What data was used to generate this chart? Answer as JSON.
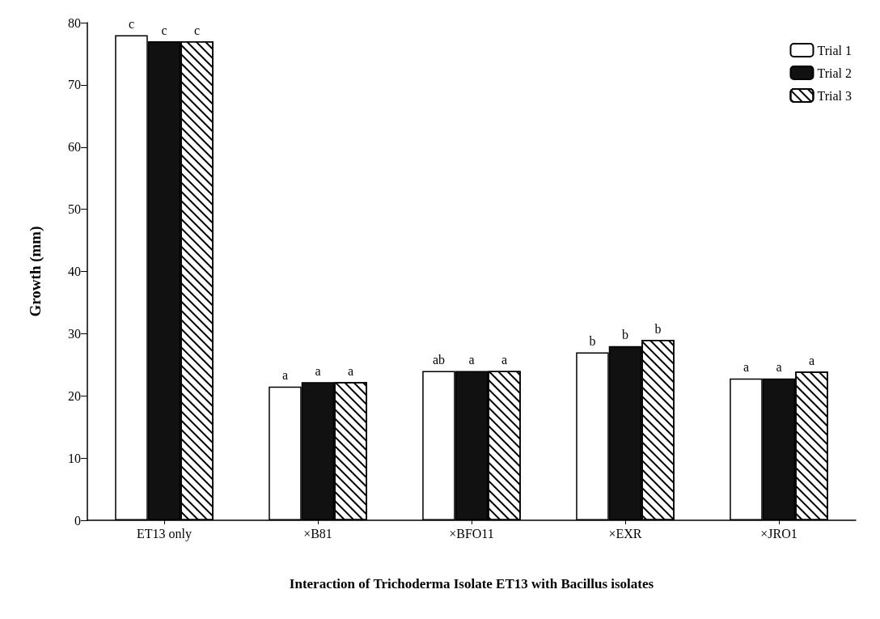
{
  "chart_data": {
    "type": "bar",
    "xlabel": "Interaction of Trichoderma Isolate ET13 with Bacillus isolates",
    "ylabel": "Growth (mm)",
    "categories": [
      "ET13 only",
      "×B81",
      "×BFO11",
      "×EXR",
      "×JRO1"
    ],
    "series": [
      {
        "name": "Trial 1",
        "color": "#ffffff",
        "values": [
          78,
          21.5,
          24,
          27,
          22.8
        ],
        "value_labels": [
          "c",
          "a",
          "ab",
          "b",
          "a"
        ]
      },
      {
        "name": "Trial 2",
        "color": "#111111",
        "values": [
          77,
          22.2,
          24,
          28,
          22.8
        ],
        "value_labels": [
          "c",
          "a",
          "a",
          "b",
          "a"
        ]
      },
      {
        "name": "Trial 3",
        "color": "#ffffff",
        "values": [
          77,
          22.2,
          24,
          29,
          23.9
        ],
        "value_labels": [
          "c",
          "a",
          "a",
          "b",
          "a"
        ]
      }
    ],
    "ylim": [
      0,
      80
    ],
    "yticks": [
      0,
      10,
      20,
      30,
      40,
      50,
      60,
      70,
      80
    ],
    "grid": false,
    "legend": "top right"
  }
}
